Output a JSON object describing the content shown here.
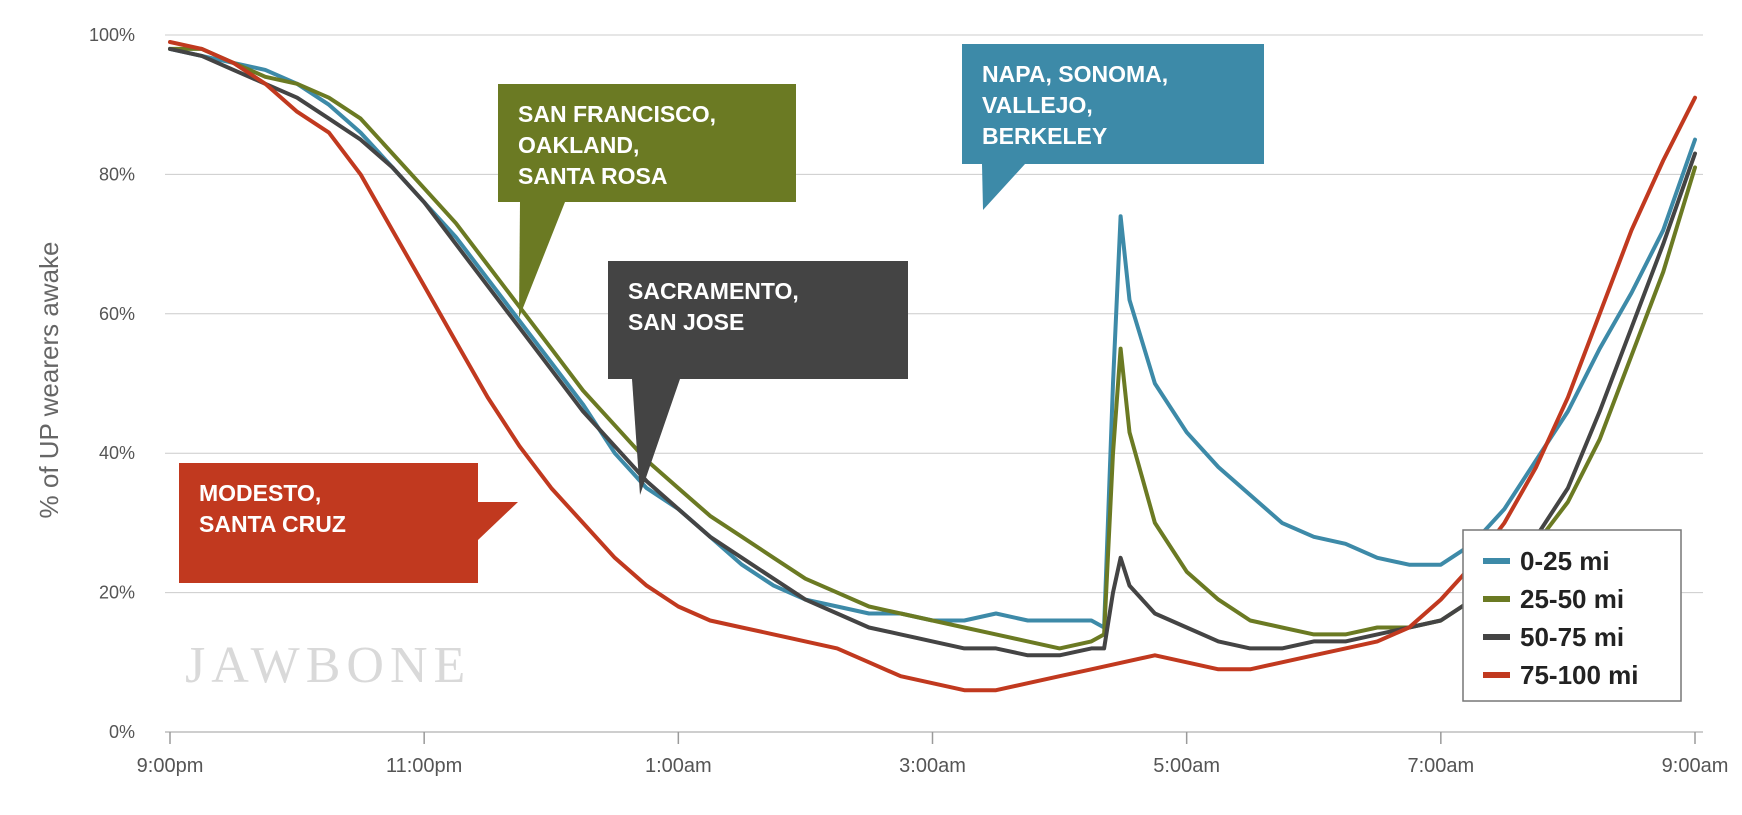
{
  "chart_data": {
    "type": "line",
    "title": "",
    "xlabel": "",
    "ylabel": "% of UP wearers awake",
    "x_tick_labels": [
      "9:00pm",
      "11:00pm",
      "1:00am",
      "3:00am",
      "5:00am",
      "7:00am",
      "9:00am"
    ],
    "y_tick_labels": [
      "0%",
      "20%",
      "40%",
      "60%",
      "80%",
      "100%"
    ],
    "ylim": [
      0,
      100
    ],
    "x_range_hours_from_9pm": [
      0,
      12
    ],
    "grid": "horizontal",
    "legend_position": "bottom-right",
    "series": [
      {
        "name": "0-25 mi",
        "color": "#3d8aa8",
        "points": [
          [
            0,
            98
          ],
          [
            0.25,
            97
          ],
          [
            0.5,
            96
          ],
          [
            0.75,
            95
          ],
          [
            1,
            93
          ],
          [
            1.25,
            90
          ],
          [
            1.5,
            86
          ],
          [
            1.75,
            81
          ],
          [
            2,
            76
          ],
          [
            2.25,
            71
          ],
          [
            2.5,
            65
          ],
          [
            2.75,
            59
          ],
          [
            3,
            53
          ],
          [
            3.25,
            47
          ],
          [
            3.5,
            40
          ],
          [
            3.75,
            35
          ],
          [
            4,
            32
          ],
          [
            4.25,
            28
          ],
          [
            4.5,
            24
          ],
          [
            4.75,
            21
          ],
          [
            5,
            19
          ],
          [
            5.25,
            18
          ],
          [
            5.5,
            17
          ],
          [
            5.75,
            17
          ],
          [
            6,
            16
          ],
          [
            6.25,
            16
          ],
          [
            6.5,
            17
          ],
          [
            6.75,
            16
          ],
          [
            7,
            16
          ],
          [
            7.25,
            16
          ],
          [
            7.35,
            15
          ],
          [
            7.42,
            50
          ],
          [
            7.48,
            74
          ],
          [
            7.55,
            62
          ],
          [
            7.75,
            50
          ],
          [
            8,
            43
          ],
          [
            8.25,
            38
          ],
          [
            8.5,
            34
          ],
          [
            8.75,
            30
          ],
          [
            9,
            28
          ],
          [
            9.25,
            27
          ],
          [
            9.5,
            25
          ],
          [
            9.75,
            24
          ],
          [
            10,
            24
          ],
          [
            10.25,
            27
          ],
          [
            10.5,
            32
          ],
          [
            10.75,
            39
          ],
          [
            11,
            46
          ],
          [
            11.25,
            55
          ],
          [
            11.5,
            63
          ],
          [
            11.75,
            72
          ],
          [
            12,
            85
          ]
        ]
      },
      {
        "name": "25-50 mi",
        "color": "#6b7a23",
        "points": [
          [
            0,
            98
          ],
          [
            0.25,
            98
          ],
          [
            0.5,
            96
          ],
          [
            0.75,
            94
          ],
          [
            1,
            93
          ],
          [
            1.25,
            91
          ],
          [
            1.5,
            88
          ],
          [
            1.75,
            83
          ],
          [
            2,
            78
          ],
          [
            2.25,
            73
          ],
          [
            2.5,
            67
          ],
          [
            2.75,
            61
          ],
          [
            3,
            55
          ],
          [
            3.25,
            49
          ],
          [
            3.5,
            44
          ],
          [
            3.75,
            39
          ],
          [
            4,
            35
          ],
          [
            4.25,
            31
          ],
          [
            4.5,
            28
          ],
          [
            4.75,
            25
          ],
          [
            5,
            22
          ],
          [
            5.25,
            20
          ],
          [
            5.5,
            18
          ],
          [
            5.75,
            17
          ],
          [
            6,
            16
          ],
          [
            6.25,
            15
          ],
          [
            6.5,
            14
          ],
          [
            6.75,
            13
          ],
          [
            7,
            12
          ],
          [
            7.25,
            13
          ],
          [
            7.35,
            14
          ],
          [
            7.42,
            40
          ],
          [
            7.48,
            55
          ],
          [
            7.55,
            43
          ],
          [
            7.75,
            30
          ],
          [
            8,
            23
          ],
          [
            8.25,
            19
          ],
          [
            8.5,
            16
          ],
          [
            8.75,
            15
          ],
          [
            9,
            14
          ],
          [
            9.25,
            14
          ],
          [
            9.5,
            15
          ],
          [
            9.75,
            15
          ],
          [
            10,
            16
          ],
          [
            10.25,
            19
          ],
          [
            10.5,
            23
          ],
          [
            10.75,
            27
          ],
          [
            11,
            33
          ],
          [
            11.25,
            42
          ],
          [
            11.5,
            54
          ],
          [
            11.75,
            66
          ],
          [
            12,
            81
          ]
        ]
      },
      {
        "name": "50-75 mi",
        "color": "#444444",
        "points": [
          [
            0,
            98
          ],
          [
            0.25,
            97
          ],
          [
            0.5,
            95
          ],
          [
            0.75,
            93
          ],
          [
            1,
            91
          ],
          [
            1.25,
            88
          ],
          [
            1.5,
            85
          ],
          [
            1.75,
            81
          ],
          [
            2,
            76
          ],
          [
            2.25,
            70
          ],
          [
            2.5,
            64
          ],
          [
            2.75,
            58
          ],
          [
            3,
            52
          ],
          [
            3.25,
            46
          ],
          [
            3.5,
            41
          ],
          [
            3.75,
            36
          ],
          [
            4,
            32
          ],
          [
            4.25,
            28
          ],
          [
            4.5,
            25
          ],
          [
            4.75,
            22
          ],
          [
            5,
            19
          ],
          [
            5.25,
            17
          ],
          [
            5.5,
            15
          ],
          [
            5.75,
            14
          ],
          [
            6,
            13
          ],
          [
            6.25,
            12
          ],
          [
            6.5,
            12
          ],
          [
            6.75,
            11
          ],
          [
            7,
            11
          ],
          [
            7.25,
            12
          ],
          [
            7.35,
            12
          ],
          [
            7.42,
            20
          ],
          [
            7.48,
            25
          ],
          [
            7.55,
            21
          ],
          [
            7.75,
            17
          ],
          [
            8,
            15
          ],
          [
            8.25,
            13
          ],
          [
            8.5,
            12
          ],
          [
            8.75,
            12
          ],
          [
            9,
            13
          ],
          [
            9.25,
            13
          ],
          [
            9.5,
            14
          ],
          [
            9.75,
            15
          ],
          [
            10,
            16
          ],
          [
            10.25,
            19
          ],
          [
            10.5,
            23
          ],
          [
            10.75,
            28
          ],
          [
            11,
            35
          ],
          [
            11.25,
            46
          ],
          [
            11.5,
            58
          ],
          [
            11.75,
            70
          ],
          [
            12,
            83
          ]
        ]
      },
      {
        "name": "75-100 mi",
        "color": "#c1391f",
        "points": [
          [
            0,
            99
          ],
          [
            0.25,
            98
          ],
          [
            0.5,
            96
          ],
          [
            0.75,
            93
          ],
          [
            1,
            89
          ],
          [
            1.25,
            86
          ],
          [
            1.5,
            80
          ],
          [
            1.75,
            72
          ],
          [
            2,
            64
          ],
          [
            2.25,
            56
          ],
          [
            2.5,
            48
          ],
          [
            2.75,
            41
          ],
          [
            3,
            35
          ],
          [
            3.25,
            30
          ],
          [
            3.5,
            25
          ],
          [
            3.75,
            21
          ],
          [
            4,
            18
          ],
          [
            4.25,
            16
          ],
          [
            4.5,
            15
          ],
          [
            4.75,
            14
          ],
          [
            5,
            13
          ],
          [
            5.25,
            12
          ],
          [
            5.5,
            10
          ],
          [
            5.75,
            8
          ],
          [
            6,
            7
          ],
          [
            6.25,
            6
          ],
          [
            6.5,
            6
          ],
          [
            6.75,
            7
          ],
          [
            7,
            8
          ],
          [
            7.25,
            9
          ],
          [
            7.5,
            10
          ],
          [
            7.75,
            11
          ],
          [
            8,
            10
          ],
          [
            8.25,
            9
          ],
          [
            8.5,
            9
          ],
          [
            8.75,
            10
          ],
          [
            9,
            11
          ],
          [
            9.25,
            12
          ],
          [
            9.5,
            13
          ],
          [
            9.75,
            15
          ],
          [
            10,
            19
          ],
          [
            10.25,
            24
          ],
          [
            10.5,
            30
          ],
          [
            10.75,
            38
          ],
          [
            11,
            48
          ],
          [
            11.25,
            60
          ],
          [
            11.5,
            72
          ],
          [
            11.75,
            82
          ],
          [
            12,
            91
          ]
        ]
      }
    ],
    "annotations": [
      {
        "lines": [
          "SAN FRANCISCO,",
          "OAKLAND,",
          "SANTA ROSA"
        ],
        "color": "#6b7a23"
      },
      {
        "lines": [
          "SACRAMENTO,",
          "SAN JOSE"
        ],
        "color": "#444444"
      },
      {
        "lines": [
          "NAPA, SONOMA,",
          "VALLEJO,",
          "BERKELEY"
        ],
        "color": "#3d8aa8"
      },
      {
        "lines": [
          "MODESTO,",
          "SANTA CRUZ"
        ],
        "color": "#c1391f"
      }
    ],
    "watermark": "JAWBONE"
  }
}
